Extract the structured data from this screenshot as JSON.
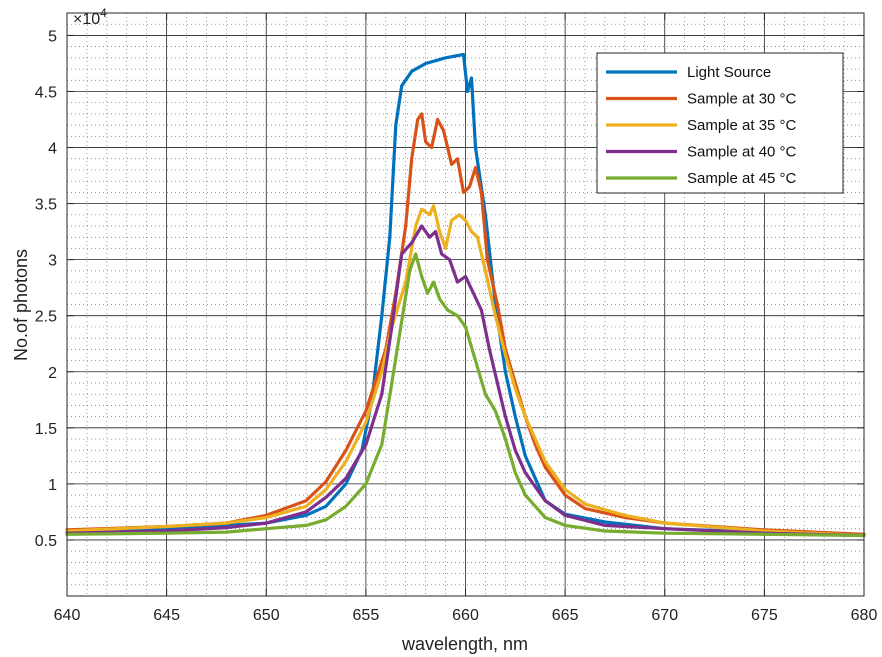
{
  "chart_data": {
    "type": "line",
    "title": "",
    "xlabel": "wavelength, nm",
    "ylabel": "No.of photons",
    "y_multiplier_label": "×10",
    "y_multiplier_exponent": "4",
    "xlim": [
      640,
      680
    ],
    "ylim": [
      0,
      5.2
    ],
    "xticks": [
      640,
      645,
      650,
      655,
      660,
      665,
      670,
      675,
      680
    ],
    "yticks": [
      0.5,
      1,
      1.5,
      2,
      2.5,
      3,
      3.5,
      4,
      4.5,
      5
    ],
    "xtick_labels": [
      "640",
      "645",
      "650",
      "655",
      "660",
      "665",
      "670",
      "675",
      "680"
    ],
    "ytick_labels": [
      "0.5",
      "1",
      "1.5",
      "2",
      "2.5",
      "3",
      "3.5",
      "4",
      "4.5",
      "5"
    ],
    "grid": true,
    "minor_grid": true,
    "legend_position": "top-right",
    "series": [
      {
        "name": "Light Source",
        "color": "#0072BD",
        "points": [
          [
            640,
            0.57
          ],
          [
            645,
            0.6
          ],
          [
            650,
            0.65
          ],
          [
            652,
            0.72
          ],
          [
            653,
            0.8
          ],
          [
            654,
            1.0
          ],
          [
            654.8,
            1.3
          ],
          [
            655.3,
            1.75
          ],
          [
            655.8,
            2.5
          ],
          [
            656.2,
            3.2
          ],
          [
            656.5,
            4.2
          ],
          [
            656.8,
            4.55
          ],
          [
            657.3,
            4.68
          ],
          [
            658,
            4.75
          ],
          [
            659,
            4.8
          ],
          [
            659.9,
            4.83
          ],
          [
            660.1,
            4.5
          ],
          [
            660.3,
            4.62
          ],
          [
            660.5,
            4.0
          ],
          [
            661,
            3.4
          ],
          [
            661.5,
            2.6
          ],
          [
            662,
            2.0
          ],
          [
            662.5,
            1.6
          ],
          [
            663,
            1.25
          ],
          [
            664,
            0.85
          ],
          [
            665,
            0.73
          ],
          [
            667,
            0.66
          ],
          [
            670,
            0.6
          ],
          [
            675,
            0.57
          ],
          [
            680,
            0.55
          ]
        ]
      },
      {
        "name": "Sample at 30 °C",
        "color": "#D95319",
        "points": [
          [
            640,
            0.59
          ],
          [
            645,
            0.62
          ],
          [
            648,
            0.65
          ],
          [
            650,
            0.72
          ],
          [
            652,
            0.85
          ],
          [
            653,
            1.02
          ],
          [
            654,
            1.3
          ],
          [
            655,
            1.65
          ],
          [
            656,
            2.2
          ],
          [
            656.5,
            2.7
          ],
          [
            657,
            3.3
          ],
          [
            657.3,
            3.9
          ],
          [
            657.6,
            4.25
          ],
          [
            657.8,
            4.3
          ],
          [
            658,
            4.05
          ],
          [
            658.3,
            4.0
          ],
          [
            658.6,
            4.25
          ],
          [
            658.9,
            4.15
          ],
          [
            659.3,
            3.85
          ],
          [
            659.6,
            3.9
          ],
          [
            659.9,
            3.6
          ],
          [
            660.2,
            3.65
          ],
          [
            660.5,
            3.82
          ],
          [
            660.8,
            3.6
          ],
          [
            661.1,
            3.0
          ],
          [
            661.6,
            2.6
          ],
          [
            662,
            2.2
          ],
          [
            662.5,
            1.9
          ],
          [
            663,
            1.6
          ],
          [
            663.5,
            1.35
          ],
          [
            664,
            1.15
          ],
          [
            665,
            0.9
          ],
          [
            666,
            0.78
          ],
          [
            668,
            0.7
          ],
          [
            670,
            0.65
          ],
          [
            675,
            0.59
          ],
          [
            680,
            0.55
          ]
        ]
      },
      {
        "name": "Sample at 35 °C",
        "color": "#EDB120",
        "points": [
          [
            640,
            0.58
          ],
          [
            645,
            0.62
          ],
          [
            648,
            0.65
          ],
          [
            650,
            0.7
          ],
          [
            652,
            0.8
          ],
          [
            653,
            0.95
          ],
          [
            654,
            1.2
          ],
          [
            655,
            1.55
          ],
          [
            655.8,
            2.0
          ],
          [
            656.3,
            2.4
          ],
          [
            657,
            2.8
          ],
          [
            657.5,
            3.3
          ],
          [
            657.8,
            3.45
          ],
          [
            658.2,
            3.4
          ],
          [
            658.4,
            3.48
          ],
          [
            658.7,
            3.25
          ],
          [
            659,
            3.1
          ],
          [
            659.3,
            3.35
          ],
          [
            659.7,
            3.4
          ],
          [
            660,
            3.35
          ],
          [
            660.3,
            3.25
          ],
          [
            660.6,
            3.2
          ],
          [
            661,
            2.9
          ],
          [
            661.5,
            2.5
          ],
          [
            662,
            2.15
          ],
          [
            662.5,
            1.85
          ],
          [
            663,
            1.6
          ],
          [
            663.5,
            1.4
          ],
          [
            664,
            1.2
          ],
          [
            665,
            0.95
          ],
          [
            666,
            0.82
          ],
          [
            668,
            0.72
          ],
          [
            670,
            0.65
          ],
          [
            675,
            0.58
          ],
          [
            680,
            0.54
          ]
        ]
      },
      {
        "name": "Sample at 40 °C",
        "color": "#7E2F8E",
        "points": [
          [
            640,
            0.56
          ],
          [
            645,
            0.58
          ],
          [
            648,
            0.61
          ],
          [
            650,
            0.65
          ],
          [
            652,
            0.75
          ],
          [
            653,
            0.88
          ],
          [
            654,
            1.05
          ],
          [
            655,
            1.35
          ],
          [
            655.8,
            1.8
          ],
          [
            656.3,
            2.4
          ],
          [
            656.8,
            3.05
          ],
          [
            657.3,
            3.15
          ],
          [
            657.8,
            3.3
          ],
          [
            658.2,
            3.2
          ],
          [
            658.5,
            3.25
          ],
          [
            658.8,
            3.05
          ],
          [
            659.2,
            3.0
          ],
          [
            659.6,
            2.8
          ],
          [
            660,
            2.85
          ],
          [
            660.4,
            2.7
          ],
          [
            660.8,
            2.55
          ],
          [
            661.2,
            2.2
          ],
          [
            661.6,
            1.9
          ],
          [
            662,
            1.6
          ],
          [
            662.5,
            1.3
          ],
          [
            663,
            1.1
          ],
          [
            664,
            0.85
          ],
          [
            665,
            0.72
          ],
          [
            667,
            0.63
          ],
          [
            670,
            0.6
          ],
          [
            675,
            0.56
          ],
          [
            680,
            0.54
          ]
        ]
      },
      {
        "name": "Sample at 45 °C",
        "color": "#77AC30",
        "points": [
          [
            640,
            0.55
          ],
          [
            645,
            0.56
          ],
          [
            648,
            0.57
          ],
          [
            650,
            0.6
          ],
          [
            652,
            0.63
          ],
          [
            653,
            0.68
          ],
          [
            654,
            0.8
          ],
          [
            655,
            1.0
          ],
          [
            655.8,
            1.35
          ],
          [
            656.3,
            1.9
          ],
          [
            656.8,
            2.45
          ],
          [
            657.2,
            2.9
          ],
          [
            657.5,
            3.05
          ],
          [
            657.8,
            2.85
          ],
          [
            658.1,
            2.7
          ],
          [
            658.4,
            2.8
          ],
          [
            658.7,
            2.65
          ],
          [
            659.1,
            2.55
          ],
          [
            659.6,
            2.5
          ],
          [
            660,
            2.4
          ],
          [
            660.5,
            2.1
          ],
          [
            661,
            1.8
          ],
          [
            661.5,
            1.65
          ],
          [
            662,
            1.4
          ],
          [
            662.5,
            1.1
          ],
          [
            663,
            0.9
          ],
          [
            664,
            0.7
          ],
          [
            665,
            0.63
          ],
          [
            667,
            0.58
          ],
          [
            670,
            0.56
          ],
          [
            675,
            0.55
          ],
          [
            680,
            0.54
          ]
        ]
      }
    ]
  }
}
